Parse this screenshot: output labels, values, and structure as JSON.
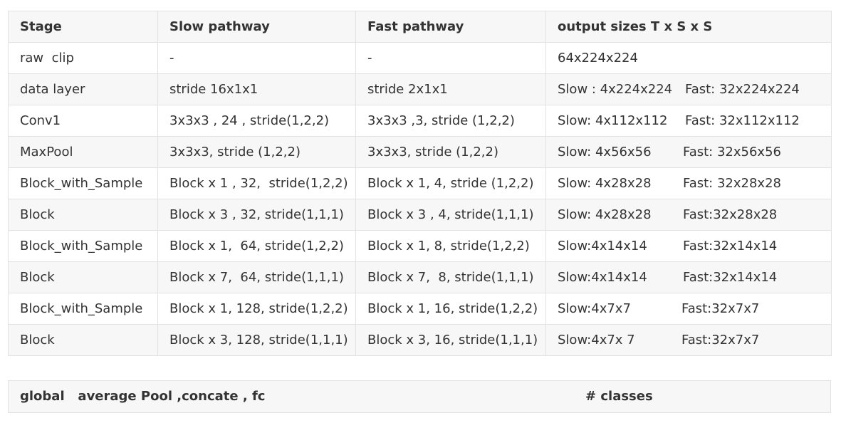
{
  "table": {
    "headers": [
      "Stage",
      "Slow pathway",
      "Fast pathway",
      "output sizes T x S x S"
    ],
    "rows": [
      {
        "stage": "raw  clip",
        "slow": "-",
        "fast": "-",
        "out_slow": "64x224x224",
        "out_fast": ""
      },
      {
        "stage": "data layer",
        "slow": "stride 16x1x1",
        "fast": "stride 2x1x1",
        "out_slow": "Slow : 4x224x224",
        "out_fast": "Fast: 32x224x224"
      },
      {
        "stage": "Conv1",
        "slow": "3x3x3 , 24 , stride(1,2,2)",
        "fast": "3x3x3 ,3, stride (1,2,2)",
        "out_slow": "Slow: 4x112x112",
        "out_fast": "Fast: 32x112x112"
      },
      {
        "stage": "MaxPool",
        "slow": "3x3x3, stride (1,2,2)",
        "fast": "3x3x3, stride (1,2,2)",
        "out_slow": "Slow: 4x56x56",
        "out_fast": "Fast: 32x56x56"
      },
      {
        "stage": "Block_with_Sample",
        "slow": "Block x 1 , 32,  stride(1,2,2)",
        "fast": "Block x 1, 4, stride (1,2,2)",
        "out_slow": "Slow: 4x28x28",
        "out_fast": "Fast: 32x28x28"
      },
      {
        "stage": "Block",
        "slow": "Block x 3 , 32, stride(1,1,1)",
        "fast": "Block x 3 , 4, stride(1,1,1)",
        "out_slow": "Slow: 4x28x28",
        "out_fast": "Fast:32x28x28"
      },
      {
        "stage": "Block_with_Sample",
        "slow": "Block x 1,  64, stride(1,2,2)",
        "fast": "Block x 1, 8, stride(1,2,2)",
        "out_slow": "Slow:4x14x14",
        "out_fast": "Fast:32x14x14"
      },
      {
        "stage": "Block",
        "slow": "Block x 7,  64, stride(1,1,1)",
        "fast": "Block x 7,  8, stride(1,1,1)",
        "out_slow": "Slow:4x14x14",
        "out_fast": "Fast:32x14x14"
      },
      {
        "stage": "Block_with_Sample",
        "slow": "Block x 1, 128, stride(1,2,2)",
        "fast": "Block x 1, 16, stride(1,2,2)",
        "out_slow": "Slow:4x7x7",
        "out_fast": "Fast:32x7x7"
      },
      {
        "stage": "Block",
        "slow": "Block x 3, 128, stride(1,1,1)",
        "fast": "Block x 3, 16, stride(1,1,1)",
        "out_slow": "Slow:4x7x 7",
        "out_fast": "Fast:32x7x7"
      }
    ]
  },
  "footer": {
    "left": "global   average Pool ,concate , fc",
    "right": "# classes"
  }
}
